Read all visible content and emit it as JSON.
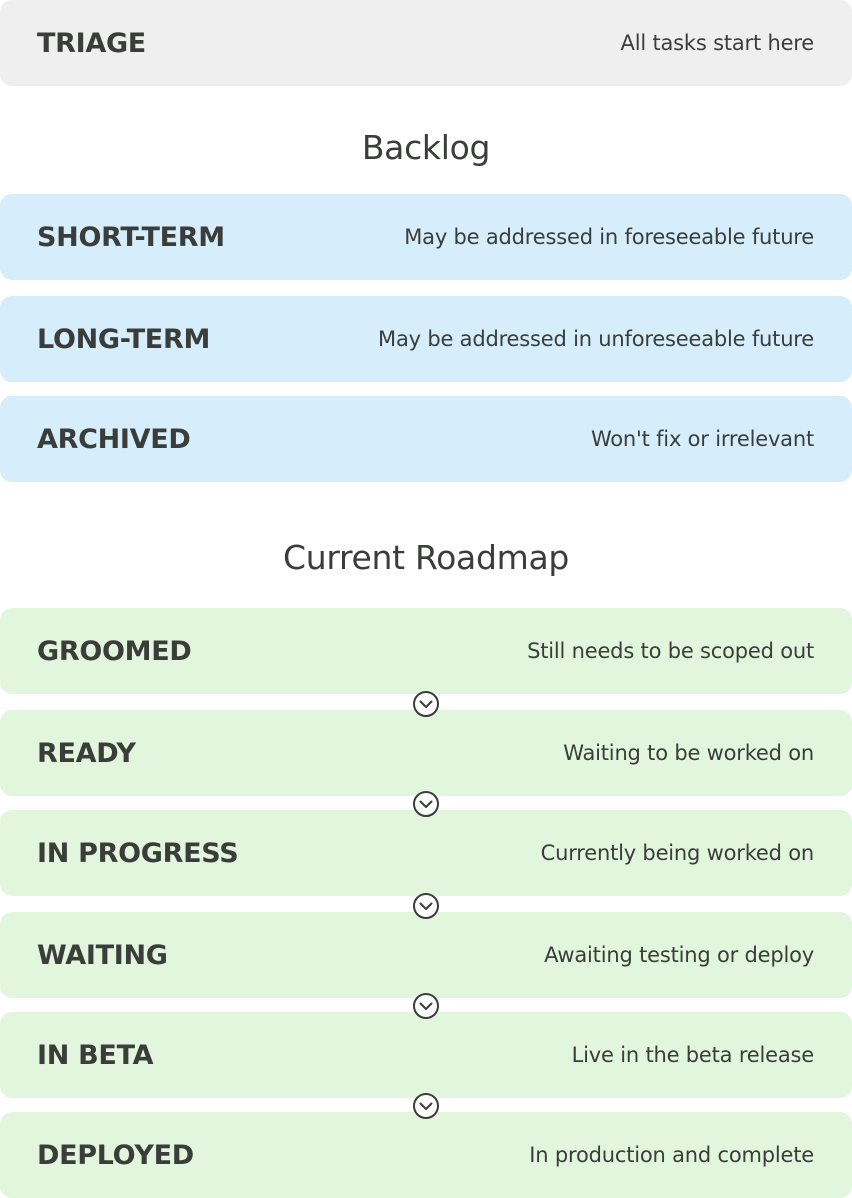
{
  "triage": {
    "title": "TRIAGE",
    "desc": "All tasks start here"
  },
  "backlog": {
    "heading": "Backlog",
    "items": [
      {
        "title": "SHORT-TERM",
        "desc": "May be addressed in foreseeable future"
      },
      {
        "title": "LONG-TERM",
        "desc": "May be addressed in unforeseeable future"
      },
      {
        "title": "ARCHIVED",
        "desc": "Won't fix or irrelevant"
      }
    ]
  },
  "roadmap": {
    "heading": "Current Roadmap",
    "items": [
      {
        "title": "GROOMED",
        "desc": "Still needs to be scoped out"
      },
      {
        "title": "READY",
        "desc": "Waiting to be worked on"
      },
      {
        "title": "IN PROGRESS",
        "desc": "Currently being worked on"
      },
      {
        "title": "WAITING",
        "desc": "Awaiting testing or deploy"
      },
      {
        "title": "IN BETA",
        "desc": "Live in the beta release"
      },
      {
        "title": "DEPLOYED",
        "desc": "In production and complete"
      }
    ],
    "connector_icon": "chevron-down-circle-icon"
  },
  "colors": {
    "triage_bg": "#efefef",
    "backlog_bg": "#d6edfb",
    "roadmap_bg": "#e2f6dd",
    "text": "#3a3d3a"
  }
}
